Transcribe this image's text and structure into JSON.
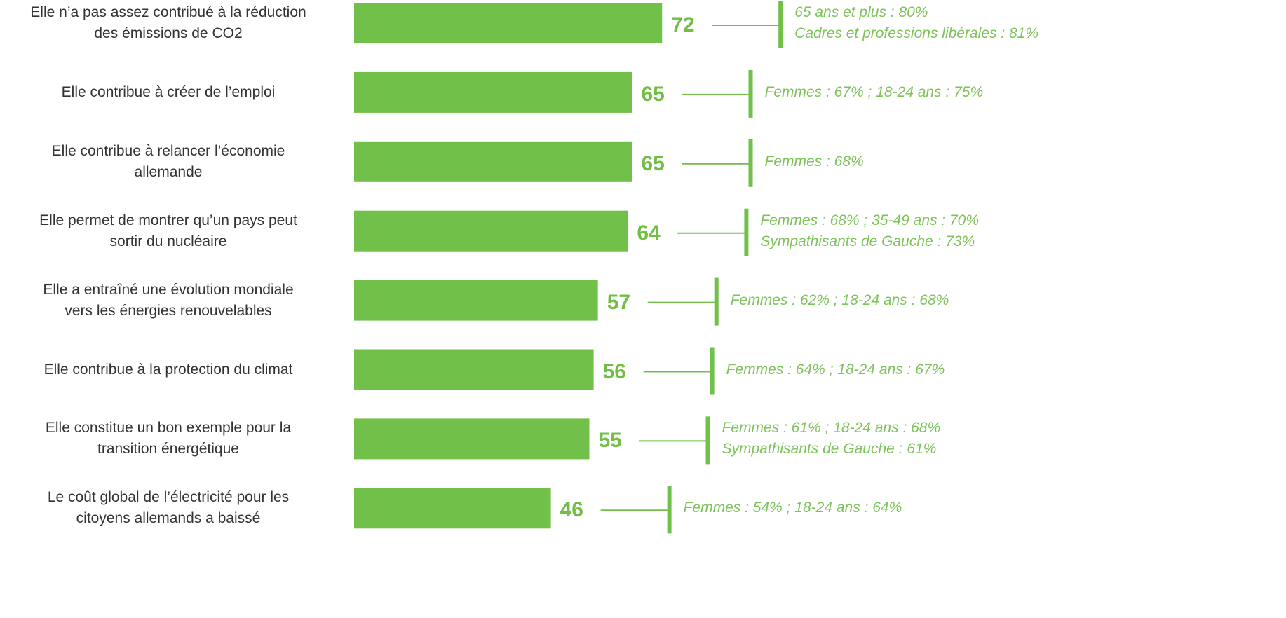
{
  "chart_data": {
    "type": "bar",
    "orientation": "horizontal",
    "color": "#70c04a",
    "categories": [
      "Elle n’a pas assez contribué à la réduction\ndes émissions de CO2",
      "Elle contribue à créer de l’emploi",
      "Elle contribue à relancer l’économie\nallemande",
      "Elle permet de montrer qu’un pays peut\nsortir du nucléaire",
      "Elle a entraîné une évolution mondiale\nvers les énergies renouvelables",
      "Elle contribue à la protection du climat",
      "Elle constitue un bon exemple pour la\ntransition énergétique",
      "Le coût global de l’électricité pour les\ncitoyens allemands a baissé"
    ],
    "values": [
      72,
      65,
      65,
      64,
      57,
      56,
      55,
      46
    ],
    "annotations": [
      "65 ans et plus  : 80%\nCadres et professions libérales  : 81%",
      "Femmes : 67% ; 18-24 ans : 75%",
      "Femmes : 68%",
      "Femmes : 68% ; 35-49 ans : 70%\nSympathisants de Gauche  : 73%",
      "Femmes : 62% ; 18-24 ans : 68%",
      "Femmes : 64% ; 18-24 ans : 67%",
      "Femmes : 61% ; 18-24 ans  : 68%\nSympathisants de Gauche  : 61%",
      "Femmes : 54% ; 18-24 ans : 64%"
    ]
  }
}
